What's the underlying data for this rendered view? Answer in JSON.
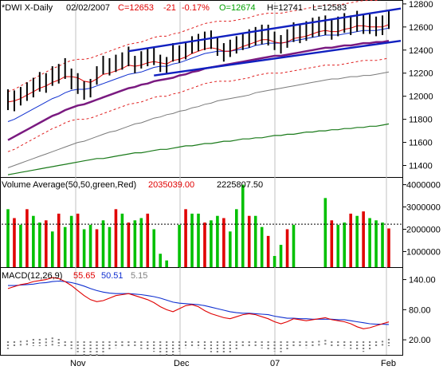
{
  "colors": {
    "up": "#00c000",
    "down": "#e00000",
    "black": "#000000",
    "red": "#e00000",
    "blue": "#1030d0",
    "grey": "#7a7a7a",
    "purple": "#7a1a80",
    "green": "#1a7a1a",
    "trend": "#1020c0",
    "dashed_red": "#e02020"
  },
  "header": {
    "symbol": "*DWI X-Daily",
    "date": "02/02/2007",
    "close": "C=12653",
    "change": "-21",
    "pct": "-0.17%",
    "open": "O=12674",
    "high": "H=12741",
    "low": "L=12583"
  },
  "volume_header": {
    "title": "Volume Average(50,50,green,Red)",
    "v1": "2035039.00",
    "v2": "2225807.50"
  },
  "macd_header": {
    "title": "MACD(12,26,9)",
    "v1": "55.65",
    "v2": "50.51",
    "v3": "5.15"
  },
  "x_labels": [
    "Nov",
    "Dec",
    "07",
    "Feb"
  ],
  "chart_data": [
    {
      "type": "bar",
      "title": "*DWI X-Daily",
      "ylim": [
        11300,
        12820
      ],
      "yticks": [
        11400,
        11600,
        11800,
        12000,
        12200,
        12400,
        12600,
        12800
      ],
      "series": [
        {
          "name": "price-bars-high",
          "values": [
            12060,
            12050,
            12080,
            12120,
            12160,
            12210,
            12200,
            12260,
            12280,
            12330,
            12240,
            12200,
            12130,
            12150,
            12260,
            12350,
            12330,
            12360,
            12380,
            12430,
            12350,
            12390,
            12420,
            12420,
            12360,
            12340,
            12460,
            12440,
            12470,
            12520,
            12540,
            12560,
            12570,
            12510,
            12460,
            12490,
            12520,
            12550,
            12580,
            12600,
            12620,
            12620,
            12560,
            12530,
            12580,
            12640,
            12630,
            12650,
            12680,
            12690,
            12700,
            12660,
            12690,
            12720,
            12700,
            12740,
            12710,
            12710,
            12690,
            12700,
            12741
          ]
        },
        {
          "name": "price-bars-low",
          "values": [
            11880,
            11870,
            11920,
            11960,
            11990,
            12040,
            12030,
            12090,
            12110,
            12150,
            12060,
            12020,
            11970,
            11990,
            12100,
            12190,
            12180,
            12210,
            12230,
            12260,
            12200,
            12240,
            12260,
            12270,
            12210,
            12190,
            12300,
            12290,
            12320,
            12370,
            12390,
            12400,
            12410,
            12350,
            12300,
            12340,
            12370,
            12400,
            12420,
            12440,
            12450,
            12440,
            12400,
            12370,
            12420,
            12470,
            12460,
            12480,
            12510,
            12520,
            12530,
            12490,
            12520,
            12550,
            12530,
            12560,
            12540,
            12540,
            12520,
            12530,
            12583
          ]
        },
        {
          "name": "ema-red",
          "values": [
            11950,
            11960,
            11980,
            12010,
            12040,
            12070,
            12090,
            12120,
            12140,
            12170,
            12170,
            12160,
            12130,
            12120,
            12150,
            12190,
            12200,
            12220,
            12240,
            12270,
            12260,
            12270,
            12290,
            12300,
            12290,
            12280,
            12310,
            12320,
            12340,
            12370,
            12390,
            12410,
            12420,
            12410,
            12390,
            12390,
            12410,
            12430,
            12450,
            12470,
            12490,
            12490,
            12470,
            12460,
            12470,
            12500,
            12510,
            12520,
            12540,
            12560,
            12570,
            12560,
            12560,
            12580,
            12590,
            12610,
            12610,
            12600,
            12600,
            12600,
            12620
          ]
        },
        {
          "name": "ma-blue",
          "values": [
            11780,
            11800,
            11830,
            11860,
            11890,
            11920,
            11950,
            11980,
            12000,
            12030,
            12050,
            12060,
            12060,
            12070,
            12090,
            12110,
            12130,
            12150,
            12170,
            12190,
            12200,
            12210,
            12230,
            12250,
            12260,
            12260,
            12280,
            12290,
            12310,
            12330,
            12350,
            12370,
            12380,
            12390,
            12390,
            12390,
            12400,
            12410,
            12420,
            12440,
            12450,
            12460,
            12460,
            12460,
            12470,
            12480,
            12490,
            12500,
            12510,
            12520,
            12530,
            12530,
            12530,
            12540,
            12550,
            12560,
            12570,
            12570,
            12570,
            12580,
            12590
          ]
        },
        {
          "name": "ma-purple",
          "values": [
            11620,
            11650,
            11680,
            11710,
            11740,
            11770,
            11800,
            11830,
            11850,
            11880,
            11900,
            11920,
            11930,
            11950,
            11970,
            11990,
            12010,
            12030,
            12050,
            12070,
            12080,
            12100,
            12110,
            12130,
            12140,
            12150,
            12160,
            12180,
            12190,
            12210,
            12220,
            12240,
            12250,
            12260,
            12270,
            12280,
            12290,
            12300,
            12310,
            12320,
            12330,
            12340,
            12350,
            12350,
            12360,
            12370,
            12380,
            12390,
            12400,
            12410,
            12420,
            12420,
            12430,
            12440,
            12440,
            12450,
            12460,
            12460,
            12470,
            12470,
            12480
          ]
        },
        {
          "name": "ma-grey",
          "values": [
            11380,
            11400,
            11420,
            11440,
            11460,
            11480,
            11500,
            11520,
            11540,
            11560,
            11580,
            11600,
            11610,
            11630,
            11650,
            11670,
            11690,
            11700,
            11720,
            11740,
            11760,
            11770,
            11790,
            11810,
            11820,
            11840,
            11850,
            11870,
            11880,
            11900,
            11910,
            11930,
            11940,
            11960,
            11970,
            11980,
            11990,
            12000,
            12010,
            12030,
            12040,
            12050,
            12060,
            12070,
            12080,
            12090,
            12100,
            12110,
            12120,
            12130,
            12140,
            12150,
            12150,
            12160,
            12170,
            12170,
            12180,
            12180,
            12190,
            12200,
            12210
          ]
        },
        {
          "name": "ma-green",
          "values": [
            11320,
            11330,
            11340,
            11350,
            11360,
            11370,
            11380,
            11390,
            11400,
            11410,
            11420,
            11430,
            11440,
            11450,
            11460,
            11460,
            11470,
            11480,
            11490,
            11500,
            11510,
            11510,
            11520,
            11530,
            11540,
            11540,
            11550,
            11560,
            11570,
            11570,
            11580,
            11590,
            11590,
            11600,
            11610,
            11610,
            11620,
            11630,
            11630,
            11640,
            11640,
            11650,
            11660,
            11660,
            11670,
            11670,
            11680,
            11690,
            11690,
            11700,
            11700,
            11710,
            11710,
            11720,
            11720,
            11730,
            11730,
            11740,
            11740,
            11750,
            11760
          ]
        }
      ],
      "trendlines": [
        {
          "from": [
            19,
            12390
          ],
          "to": [
            60,
            12750
          ]
        },
        {
          "from": [
            23,
            12180
          ],
          "to": [
            60,
            12470
          ]
        }
      ]
    },
    {
      "type": "bar",
      "title": "Volume Average(50,50,green,Red)",
      "ylim": [
        300000,
        4200000
      ],
      "yticks": [
        1000000,
        2000000,
        3000000,
        4000000
      ],
      "average": 2225807.5,
      "series": [
        {
          "name": "volume",
          "values": [
            2900000,
            2500000,
            2200000,
            2900000,
            2600000,
            2300000,
            2400000,
            1900000,
            2700000,
            2100000,
            2600000,
            2700000,
            2000000,
            2200000,
            2000000,
            2400000,
            2100000,
            2900000,
            2700000,
            2300000,
            2400000,
            2500000,
            2700000,
            2000000,
            900000,
            600000,
            0,
            2200000,
            2900000,
            2700000,
            2700000,
            2300000,
            2400000,
            2600000,
            2500000,
            1900000,
            2900000,
            4000000,
            2600000,
            2600000,
            2100000,
            1700000,
            800000,
            1300000,
            2000000,
            2200000,
            0,
            0,
            0,
            0,
            3400000,
            2400000,
            2200000,
            2300000,
            2700000,
            2600000,
            2800000,
            2500000,
            2400000,
            2300000,
            2035039
          ]
        },
        {
          "name": "volume-up",
          "values": [
            1,
            0,
            1,
            0,
            1,
            1,
            0,
            1,
            0,
            1,
            1,
            0,
            1,
            1,
            0,
            1,
            1,
            0,
            1,
            0,
            1,
            1,
            0,
            1,
            1,
            1,
            0,
            1,
            0,
            1,
            1,
            0,
            1,
            1,
            0,
            1,
            1,
            1,
            0,
            1,
            1,
            0,
            1,
            1,
            0,
            1,
            0,
            0,
            0,
            0,
            1,
            0,
            1,
            1,
            0,
            1,
            0,
            1,
            1,
            1,
            0
          ]
        }
      ]
    },
    {
      "type": "line",
      "title": "MACD(12,26,9)",
      "ylim": [
        -10,
        160
      ],
      "yticks": [
        20,
        80,
        140
      ],
      "series": [
        {
          "name": "macd",
          "values": [
            122,
            126,
            130,
            132,
            136,
            138,
            140,
            144,
            142,
            136,
            128,
            118,
            108,
            100,
            96,
            98,
            103,
            108,
            110,
            112,
            108,
            104,
            100,
            94,
            86,
            80,
            76,
            82,
            88,
            90,
            86,
            78,
            72,
            68,
            64,
            62,
            66,
            70,
            72,
            70,
            66,
            62,
            56,
            52,
            56,
            62,
            60,
            58,
            60,
            62,
            64,
            60,
            58,
            56,
            52,
            46,
            42,
            44,
            48,
            52,
            55.65
          ]
        },
        {
          "name": "signal",
          "values": [
            128,
            128,
            129,
            130,
            131,
            133,
            134,
            136,
            137,
            136,
            134,
            131,
            127,
            122,
            118,
            115,
            113,
            112,
            112,
            112,
            111,
            110,
            108,
            106,
            103,
            99,
            95,
            93,
            92,
            91,
            90,
            88,
            85,
            82,
            79,
            76,
            74,
            73,
            73,
            72,
            71,
            70,
            67,
            65,
            63,
            63,
            62,
            62,
            61,
            61,
            61,
            61,
            60,
            60,
            58,
            56,
            54,
            52,
            51,
            51,
            50.51
          ]
        },
        {
          "name": "histogram",
          "values": [
            -6,
            -2,
            1,
            2,
            5,
            5,
            6,
            8,
            5,
            0,
            -6,
            -13,
            -19,
            -22,
            -22,
            -17,
            -10,
            -4,
            -2,
            0,
            -3,
            -6,
            -8,
            -12,
            -17,
            -19,
            -19,
            -11,
            -4,
            -1,
            -4,
            -10,
            -13,
            -14,
            -15,
            -14,
            -8,
            -3,
            -1,
            -2,
            -5,
            -8,
            -11,
            -13,
            -7,
            -1,
            -2,
            -4,
            -1,
            1,
            3,
            -1,
            -2,
            -4,
            -6,
            -10,
            -12,
            -8,
            -3,
            1,
            5.15
          ]
        }
      ]
    }
  ]
}
